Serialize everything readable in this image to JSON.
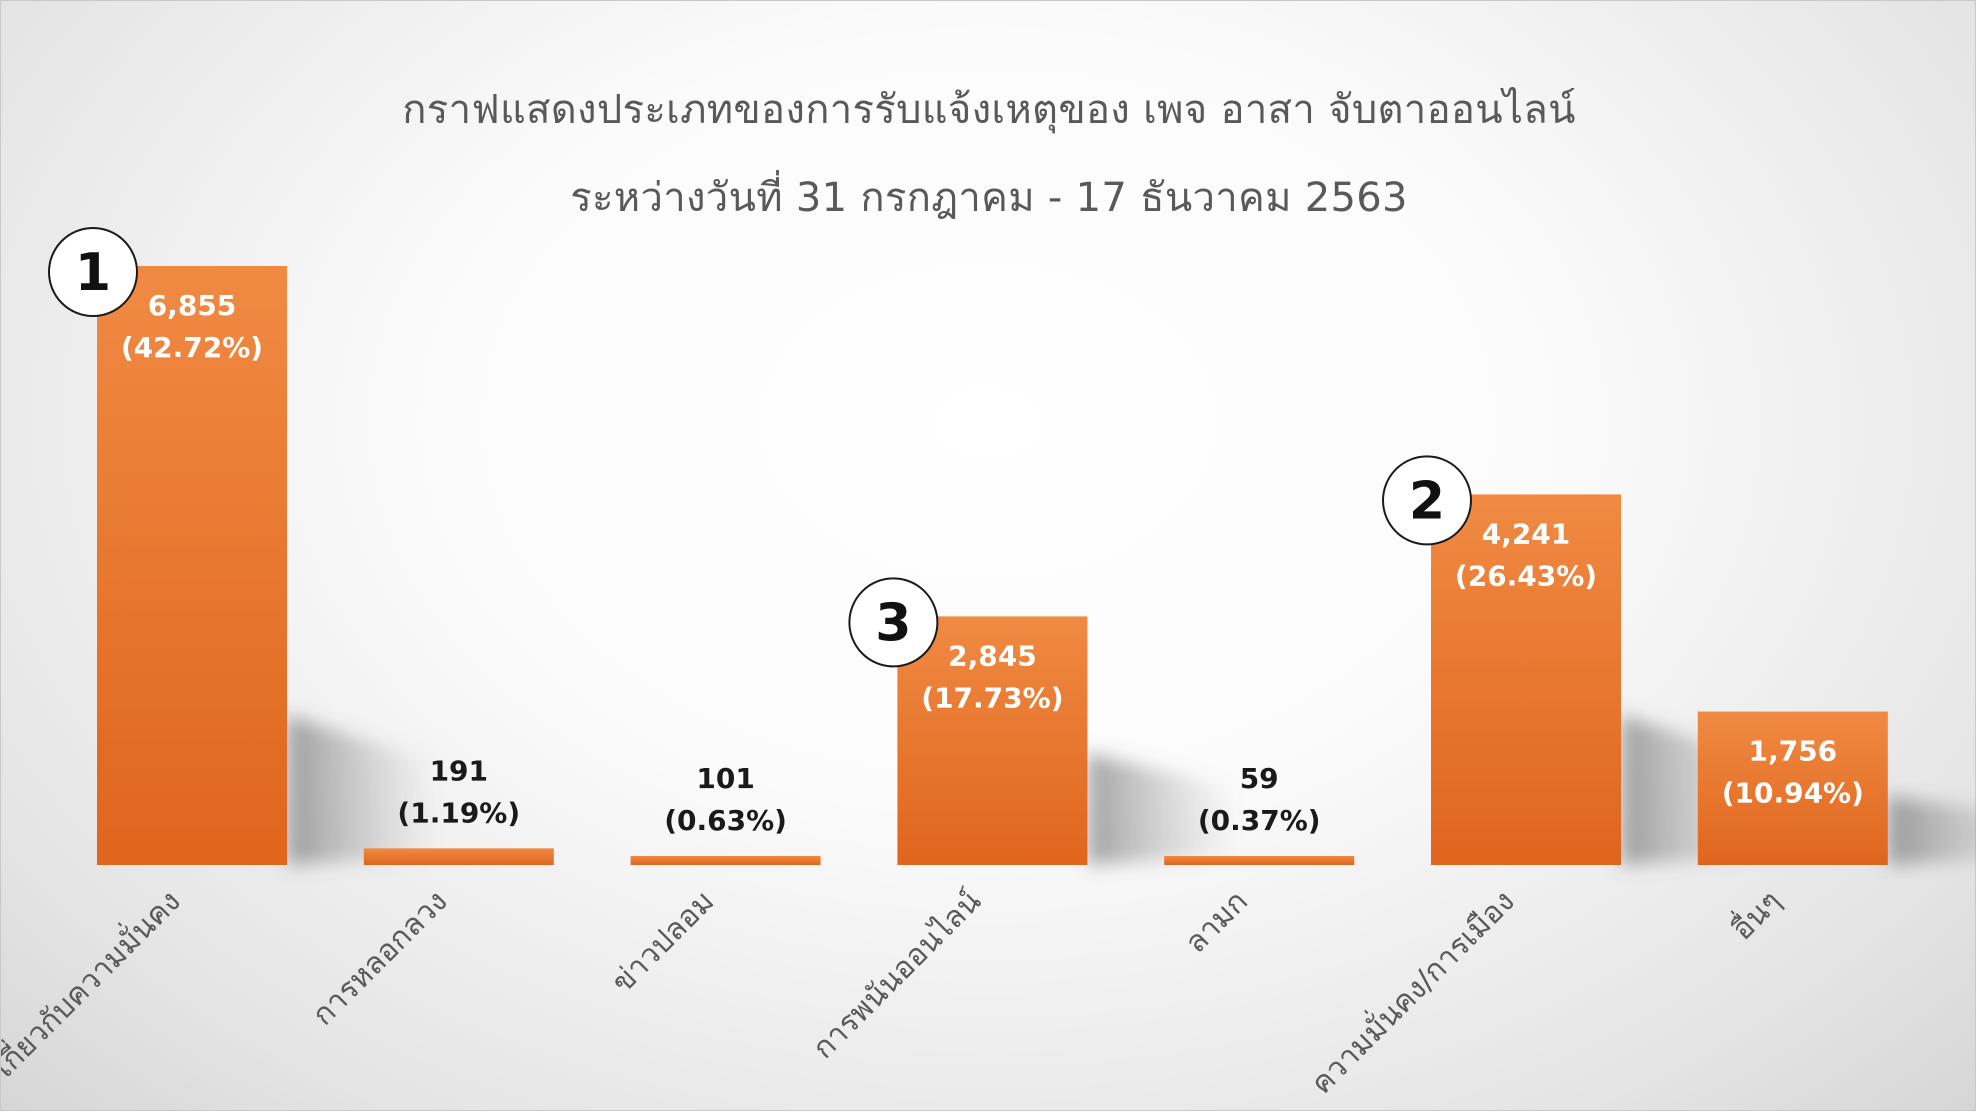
{
  "chart_data": {
    "type": "bar",
    "title": "กราฟแสดงประเภทของการรับแจ้งเหตุของ เพจ อาสา จับตาออนไลน์",
    "subtitle": "ระหว่างวันที่ 31 กรกฎาคม - 17 ธันวาคม 2563",
    "categories": [
      "เกี่ยวกับความมั่นคง",
      "การหลอกลวง",
      "ข่าวปลอม",
      "การพนันออนไลน์",
      "ลามก",
      "ความมั่นคง/การเมือง",
      "อื่นๆ"
    ],
    "values": [
      6855,
      191,
      101,
      2845,
      59,
      4241,
      1756
    ],
    "value_labels": [
      "6,855",
      "191",
      "101",
      "2,845",
      "59",
      "4,241",
      "1,756"
    ],
    "percent_labels": [
      "(42.72%)",
      "(1.19%)",
      "(0.63%)",
      "(17.73%)",
      "(0.37%)",
      "(26.43%)",
      "(10.94%)"
    ],
    "rank_badges": [
      {
        "category_index": 0,
        "label": "1"
      },
      {
        "category_index": 5,
        "label": "2"
      },
      {
        "category_index": 3,
        "label": "3"
      }
    ],
    "xlabel": "",
    "ylabel": "",
    "ylim": [
      0,
      6855
    ],
    "grid": false,
    "legend": "none",
    "colors": {
      "bar_top": "#f08a43",
      "bar_bottom": "#e0651d",
      "label_on_bar": "#ffffff",
      "label_above_bar": "#1a1a1a",
      "axis_text": "#595959",
      "badge_fill": "#ffffff",
      "badge_stroke": "#1a1a1a"
    }
  }
}
